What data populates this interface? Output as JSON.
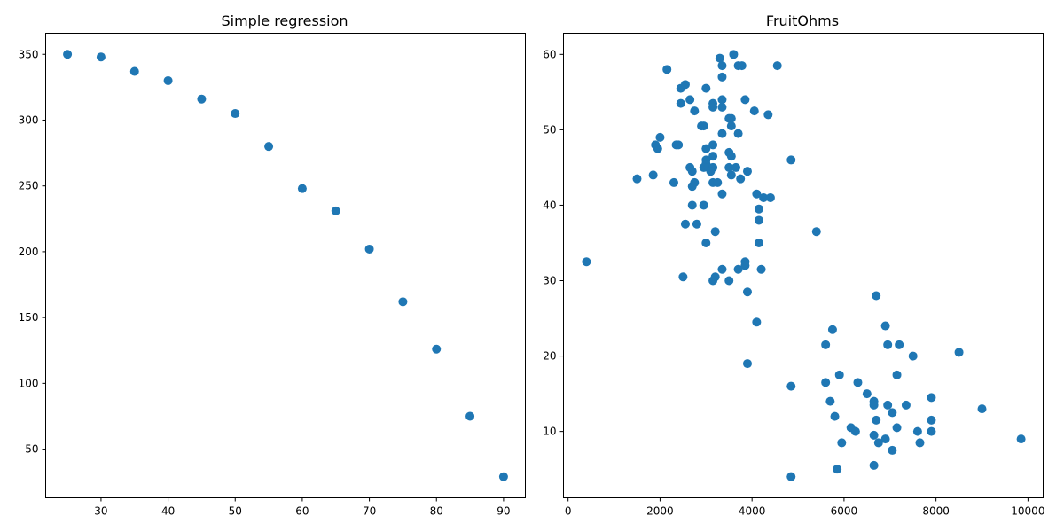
{
  "chart_data": [
    {
      "type": "scatter",
      "title": "Simple regression",
      "xlabel": "",
      "ylabel": "",
      "xlim": [
        21.75,
        93.25
      ],
      "ylim": [
        13,
        366
      ],
      "xticks": [
        30,
        40,
        50,
        60,
        70,
        80,
        90
      ],
      "yticks": [
        50,
        100,
        150,
        200,
        250,
        300,
        350
      ],
      "grid": false,
      "color": "#1f77b4",
      "points": [
        {
          "x": 25,
          "y": 350
        },
        {
          "x": 30,
          "y": 348
        },
        {
          "x": 35,
          "y": 337
        },
        {
          "x": 40,
          "y": 330
        },
        {
          "x": 45,
          "y": 316
        },
        {
          "x": 50,
          "y": 305
        },
        {
          "x": 55,
          "y": 280
        },
        {
          "x": 60,
          "y": 248
        },
        {
          "x": 65,
          "y": 231
        },
        {
          "x": 70,
          "y": 202
        },
        {
          "x": 75,
          "y": 162
        },
        {
          "x": 80,
          "y": 126
        },
        {
          "x": 85,
          "y": 75
        },
        {
          "x": 90,
          "y": 29
        }
      ]
    },
    {
      "type": "scatter",
      "title": "FruitOhms",
      "xlabel": "",
      "ylabel": "",
      "xlim": [
        -100,
        10330
      ],
      "ylim": [
        1.2,
        62.8
      ],
      "xticks": [
        0,
        2000,
        4000,
        6000,
        8000,
        10000
      ],
      "yticks": [
        10,
        20,
        30,
        40,
        50,
        60
      ],
      "grid": false,
      "color": "#1f77b4",
      "points": [
        {
          "x": 2150,
          "y": 58
        },
        {
          "x": 3300,
          "y": 59.5
        },
        {
          "x": 3600,
          "y": 60
        },
        {
          "x": 3350,
          "y": 58.5
        },
        {
          "x": 3700,
          "y": 58.5
        },
        {
          "x": 3780,
          "y": 58.5
        },
        {
          "x": 4550,
          "y": 58.5
        },
        {
          "x": 3350,
          "y": 57
        },
        {
          "x": 2450,
          "y": 55.5
        },
        {
          "x": 2550,
          "y": 56
        },
        {
          "x": 3000,
          "y": 55.5
        },
        {
          "x": 2650,
          "y": 54
        },
        {
          "x": 3350,
          "y": 54
        },
        {
          "x": 3850,
          "y": 54
        },
        {
          "x": 2450,
          "y": 53.5
        },
        {
          "x": 3150,
          "y": 53.5
        },
        {
          "x": 3150,
          "y": 53
        },
        {
          "x": 3350,
          "y": 53
        },
        {
          "x": 2750,
          "y": 52.5
        },
        {
          "x": 4050,
          "y": 52.5
        },
        {
          "x": 4350,
          "y": 52
        },
        {
          "x": 3500,
          "y": 51.5
        },
        {
          "x": 3550,
          "y": 51.5
        },
        {
          "x": 2900,
          "y": 50.5
        },
        {
          "x": 2950,
          "y": 50.5
        },
        {
          "x": 3550,
          "y": 50.5
        },
        {
          "x": 3350,
          "y": 49.5
        },
        {
          "x": 3700,
          "y": 49.5
        },
        {
          "x": 2000,
          "y": 49
        },
        {
          "x": 1900,
          "y": 48
        },
        {
          "x": 2350,
          "y": 48
        },
        {
          "x": 2400,
          "y": 48
        },
        {
          "x": 3150,
          "y": 48
        },
        {
          "x": 1950,
          "y": 47.5
        },
        {
          "x": 3000,
          "y": 47.5
        },
        {
          "x": 3500,
          "y": 47
        },
        {
          "x": 3550,
          "y": 46.5
        },
        {
          "x": 3150,
          "y": 46.5
        },
        {
          "x": 4850,
          "y": 46
        },
        {
          "x": 3000,
          "y": 46
        },
        {
          "x": 3000,
          "y": 45.5
        },
        {
          "x": 2950,
          "y": 45
        },
        {
          "x": 3050,
          "y": 45
        },
        {
          "x": 3150,
          "y": 45
        },
        {
          "x": 3500,
          "y": 45
        },
        {
          "x": 3650,
          "y": 45
        },
        {
          "x": 2650,
          "y": 45
        },
        {
          "x": 2700,
          "y": 44.5
        },
        {
          "x": 3100,
          "y": 44.5
        },
        {
          "x": 3900,
          "y": 44.5
        },
        {
          "x": 1850,
          "y": 44
        },
        {
          "x": 3550,
          "y": 44
        },
        {
          "x": 1500,
          "y": 43.5
        },
        {
          "x": 3750,
          "y": 43.5
        },
        {
          "x": 2300,
          "y": 43
        },
        {
          "x": 2750,
          "y": 43
        },
        {
          "x": 3150,
          "y": 43
        },
        {
          "x": 3250,
          "y": 43
        },
        {
          "x": 2700,
          "y": 42.5
        },
        {
          "x": 3350,
          "y": 41.5
        },
        {
          "x": 4100,
          "y": 41.5
        },
        {
          "x": 4250,
          "y": 41
        },
        {
          "x": 4400,
          "y": 41
        },
        {
          "x": 2700,
          "y": 40
        },
        {
          "x": 2950,
          "y": 40
        },
        {
          "x": 4150,
          "y": 39.5
        },
        {
          "x": 4150,
          "y": 38
        },
        {
          "x": 2550,
          "y": 37.5
        },
        {
          "x": 2800,
          "y": 37.5
        },
        {
          "x": 3200,
          "y": 36.5
        },
        {
          "x": 5400,
          "y": 36.5
        },
        {
          "x": 3000,
          "y": 35
        },
        {
          "x": 4150,
          "y": 35
        },
        {
          "x": 400,
          "y": 32.5
        },
        {
          "x": 3850,
          "y": 32.5
        },
        {
          "x": 3850,
          "y": 32
        },
        {
          "x": 3350,
          "y": 31.5
        },
        {
          "x": 3700,
          "y": 31.5
        },
        {
          "x": 4200,
          "y": 31.5
        },
        {
          "x": 2500,
          "y": 30.5
        },
        {
          "x": 3200,
          "y": 30.5
        },
        {
          "x": 3150,
          "y": 30
        },
        {
          "x": 3500,
          "y": 30
        },
        {
          "x": 3900,
          "y": 28.5
        },
        {
          "x": 6700,
          "y": 28
        },
        {
          "x": 4100,
          "y": 24.5
        },
        {
          "x": 6900,
          "y": 24
        },
        {
          "x": 5750,
          "y": 23.5
        },
        {
          "x": 5600,
          "y": 21.5
        },
        {
          "x": 6950,
          "y": 21.5
        },
        {
          "x": 7200,
          "y": 21.5
        },
        {
          "x": 8500,
          "y": 20.5
        },
        {
          "x": 7500,
          "y": 20
        },
        {
          "x": 3900,
          "y": 19
        },
        {
          "x": 5900,
          "y": 17.5
        },
        {
          "x": 7150,
          "y": 17.5
        },
        {
          "x": 5600,
          "y": 16.5
        },
        {
          "x": 6300,
          "y": 16.5
        },
        {
          "x": 4850,
          "y": 16
        },
        {
          "x": 6500,
          "y": 15
        },
        {
          "x": 7900,
          "y": 14.5
        },
        {
          "x": 5700,
          "y": 14
        },
        {
          "x": 6650,
          "y": 14
        },
        {
          "x": 6650,
          "y": 13.5
        },
        {
          "x": 6950,
          "y": 13.5
        },
        {
          "x": 7350,
          "y": 13.5
        },
        {
          "x": 9000,
          "y": 13
        },
        {
          "x": 7050,
          "y": 12.5
        },
        {
          "x": 5800,
          "y": 12
        },
        {
          "x": 6700,
          "y": 11.5
        },
        {
          "x": 7900,
          "y": 11.5
        },
        {
          "x": 6150,
          "y": 10.5
        },
        {
          "x": 7150,
          "y": 10.5
        },
        {
          "x": 6250,
          "y": 10
        },
        {
          "x": 7600,
          "y": 10
        },
        {
          "x": 7900,
          "y": 10
        },
        {
          "x": 6650,
          "y": 9.5
        },
        {
          "x": 6900,
          "y": 9
        },
        {
          "x": 9850,
          "y": 9
        },
        {
          "x": 5950,
          "y": 8.5
        },
        {
          "x": 6750,
          "y": 8.5
        },
        {
          "x": 7650,
          "y": 8.5
        },
        {
          "x": 7050,
          "y": 7.5
        },
        {
          "x": 6650,
          "y": 5.5
        },
        {
          "x": 5850,
          "y": 5
        },
        {
          "x": 4850,
          "y": 4
        }
      ]
    }
  ]
}
